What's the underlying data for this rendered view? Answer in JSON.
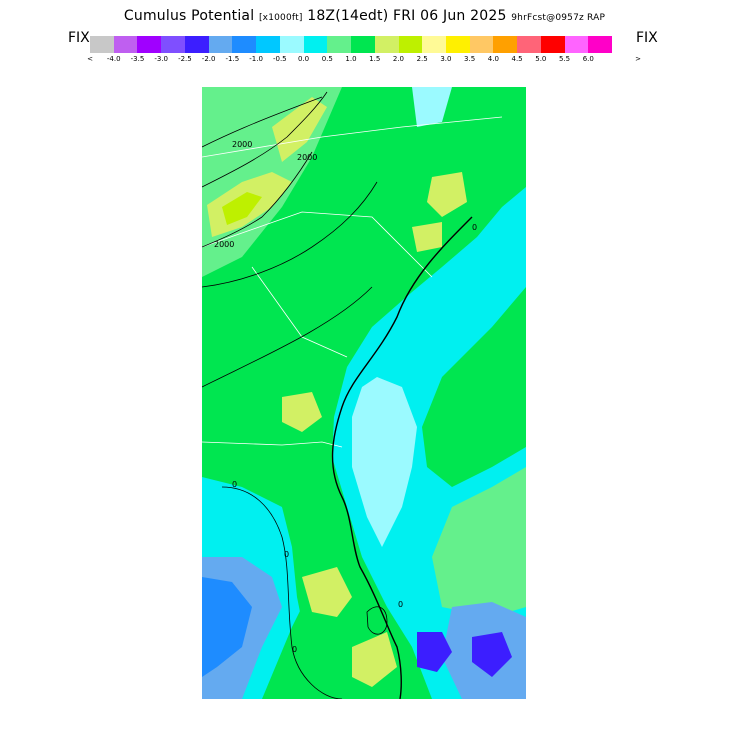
{
  "title": {
    "main": "Cumulus Potential",
    "units": "[x1000ft]",
    "time": "18Z(14edt) FRI 06 Jun 2025",
    "forecast": "9hrFcst@0957z RAP"
  },
  "colorbar": {
    "left_label": "FIX",
    "right_label": "FIX",
    "left_arrow": "<",
    "right_arrow": ">",
    "colors": [
      "#c8c8c8",
      "#bf5ff0",
      "#a000ff",
      "#7f4fff",
      "#3c1eff",
      "#64aaf0",
      "#1e8cff",
      "#00c8ff",
      "#9bfaff",
      "#00f0f0",
      "#64f08c",
      "#00e650",
      "#d2f064",
      "#bef000",
      "#fffa96",
      "#fff000",
      "#ffc864",
      "#ffa000",
      "#ff6478",
      "#ff0000",
      "#ff64ff",
      "#ff00c8"
    ],
    "tick_labels": [
      "-4.0",
      "-3.5",
      "-3.0",
      "-2.5",
      "-2.0",
      "-1.5",
      "-1.0",
      "-0.5",
      "0.0",
      "0.5",
      "1.0",
      "1.5",
      "2.0",
      "2.5",
      "3.0",
      "3.5",
      "4.0",
      "4.5",
      "5.0",
      "5.5",
      "6.0"
    ]
  },
  "map": {
    "contour_labels": [
      "2000",
      "2000",
      "2000",
      "0",
      "0",
      "0",
      "0",
      "0"
    ]
  }
}
